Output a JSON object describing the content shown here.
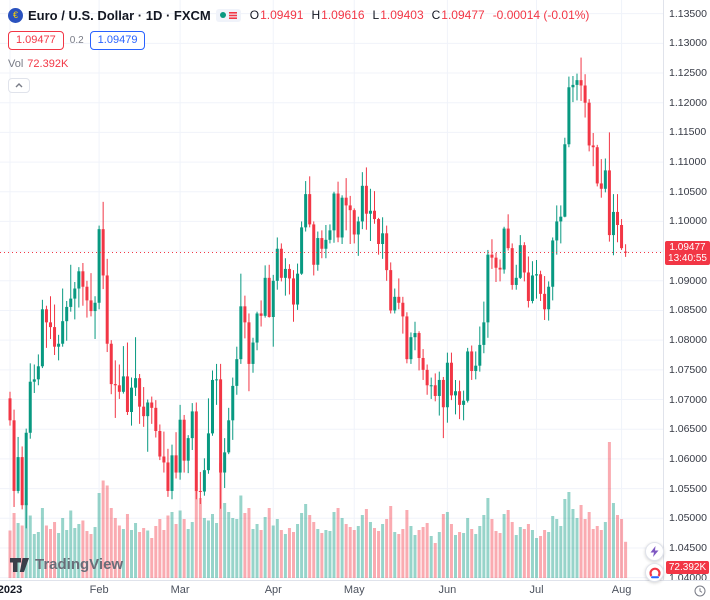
{
  "header": {
    "symbol_title": "Euro / U.S. Dollar · 1D · FXCM",
    "ohlc": {
      "o_label": "O",
      "o": "1.09491",
      "h_label": "H",
      "h": "1.09616",
      "l_label": "L",
      "l": "1.09403",
      "c_label": "C",
      "c": "1.09477",
      "change": "-0.00014 (-0.01%)"
    },
    "sell_price": "1.09477",
    "spread": "0.2",
    "buy_price": "1.09479",
    "vol_label": "Vol",
    "vol_value": "72.392K"
  },
  "price_axis": {
    "ticks": [
      1.135,
      1.13,
      1.125,
      1.12,
      1.115,
      1.11,
      1.105,
      1.1,
      1.095,
      1.09,
      1.085,
      1.08,
      1.075,
      1.07,
      1.065,
      1.06,
      1.055,
      1.05,
      1.045,
      1.04
    ],
    "last_price": "1.09477",
    "countdown": "13:40:55",
    "volume_badge": "72.392K"
  },
  "time_axis": {
    "ticks": [
      {
        "label": "2023",
        "index": 0,
        "major": true
      },
      {
        "label": "Feb",
        "index": 22
      },
      {
        "label": "Mar",
        "index": 42
      },
      {
        "label": "Apr",
        "index": 65
      },
      {
        "label": "May",
        "index": 85
      },
      {
        "label": "Jun",
        "index": 108
      },
      {
        "label": "Jul",
        "index": 130
      },
      {
        "label": "Aug",
        "index": 151
      }
    ]
  },
  "footer": {
    "logo_text": "TradingView"
  },
  "colors": {
    "up": "#089981",
    "down": "#f23645",
    "accent_blue": "#2962ff",
    "grid": "#f0f3fa",
    "axis_border": "#e0e3eb"
  },
  "chart_data": {
    "type": "candlestick",
    "title": "Euro / U.S. Dollar 1D FXCM",
    "symbol": "EUR/USD",
    "timeframe": "1D",
    "exchange": "FXCM",
    "legend_ohlc": {
      "open": 1.09491,
      "high": 1.09616,
      "low": 1.09403,
      "close": 1.09477,
      "change": -0.00014,
      "change_pct": -0.01
    },
    "last_price": 1.09477,
    "last_volume_k": 72.392,
    "y_axis": {
      "min": 1.0396,
      "max": 1.1373,
      "tick_step": 0.005,
      "grid": true,
      "position": "right"
    },
    "x_axis": {
      "start": "2023-01-02",
      "end": "2023-08-02",
      "unit": "trading-day"
    },
    "candles": [
      [
        1.0702,
        1.0713,
        1.0656,
        1.0665
      ],
      [
        1.0665,
        1.0683,
        1.0519,
        1.0546
      ],
      [
        1.0546,
        1.0637,
        1.0542,
        1.0603
      ],
      [
        1.0603,
        1.0621,
        1.0515,
        1.0522
      ],
      [
        1.0522,
        1.0651,
        1.0483,
        1.0644
      ],
      [
        1.0644,
        1.0761,
        1.0634,
        1.073
      ],
      [
        1.073,
        1.0759,
        1.0711,
        1.0734
      ],
      [
        1.0734,
        1.0776,
        1.0724,
        1.0756
      ],
      [
        1.0756,
        1.0868,
        1.0753,
        1.0852
      ],
      [
        1.0852,
        1.0858,
        1.0787,
        1.083
      ],
      [
        1.083,
        1.0874,
        1.0802,
        1.0822
      ],
      [
        1.0822,
        1.086,
        1.0775,
        1.0789
      ],
      [
        1.0789,
        1.0809,
        1.0766,
        1.0794
      ],
      [
        1.0794,
        1.0887,
        1.0789,
        1.0832
      ],
      [
        1.0832,
        1.0866,
        1.0799,
        1.0856
      ],
      [
        1.0856,
        1.0927,
        1.0848,
        1.087
      ],
      [
        1.087,
        1.0898,
        1.0835,
        1.0887
      ],
      [
        1.0887,
        1.0923,
        1.0855,
        1.0916
      ],
      [
        1.0916,
        1.093,
        1.0858,
        1.089
      ],
      [
        1.089,
        1.09,
        1.0838,
        1.0867
      ],
      [
        1.0867,
        1.0913,
        1.084,
        1.0849
      ],
      [
        1.0849,
        1.0874,
        1.0802,
        1.0863
      ],
      [
        1.0863,
        1.0993,
        1.0852,
        1.0987
      ],
      [
        1.0987,
        1.1033,
        1.0886,
        1.0909
      ],
      [
        1.0909,
        1.0937,
        1.078,
        1.0794
      ],
      [
        1.0794,
        1.08,
        1.0709,
        1.0726
      ],
      [
        1.0726,
        1.0766,
        1.0669,
        1.0724
      ],
      [
        1.0724,
        1.0759,
        1.0701,
        1.0713
      ],
      [
        1.0713,
        1.079,
        1.071,
        1.0739
      ],
      [
        1.0739,
        1.0796,
        1.0674,
        1.0679
      ],
      [
        1.0679,
        1.0737,
        1.0656,
        1.072
      ],
      [
        1.072,
        1.0805,
        1.0706,
        1.0736
      ],
      [
        1.0736,
        1.0743,
        1.0659,
        1.0688
      ],
      [
        1.0688,
        1.0721,
        1.0654,
        1.0672
      ],
      [
        1.0672,
        1.07,
        1.0612,
        1.0695
      ],
      [
        1.0695,
        1.0705,
        1.0659,
        1.0686
      ],
      [
        1.0686,
        1.0699,
        1.0636,
        1.0647
      ],
      [
        1.0647,
        1.0658,
        1.0598,
        1.0604
      ],
      [
        1.0604,
        1.0646,
        1.0577,
        1.0594
      ],
      [
        1.0594,
        1.0617,
        1.0536,
        1.0546
      ],
      [
        1.0546,
        1.0624,
        1.0532,
        1.0606
      ],
      [
        1.0606,
        1.0645,
        1.0567,
        1.0577
      ],
      [
        1.0577,
        1.0691,
        1.0565,
        1.0666
      ],
      [
        1.0666,
        1.0674,
        1.0577,
        1.0597
      ],
      [
        1.0597,
        1.064,
        1.0576,
        1.0635
      ],
      [
        1.0635,
        1.0694,
        1.0615,
        1.068
      ],
      [
        1.068,
        1.0695,
        1.0532,
        1.0546
      ],
      [
        1.0546,
        1.0578,
        1.0524,
        1.0545
      ],
      [
        1.0545,
        1.0601,
        1.0538,
        1.0581
      ],
      [
        1.0581,
        1.0702,
        1.0575,
        1.0643
      ],
      [
        1.0643,
        1.0749,
        1.0639,
        1.0733
      ],
      [
        1.0733,
        1.076,
        1.0691,
        1.0734
      ],
      [
        1.0734,
        1.076,
        1.0516,
        1.0577
      ],
      [
        1.0577,
        1.0635,
        1.0551,
        1.0611
      ],
      [
        1.0611,
        1.0686,
        1.0608,
        1.0665
      ],
      [
        1.0665,
        1.0737,
        1.0632,
        1.0723
      ],
      [
        1.0723,
        1.0789,
        1.0708,
        1.0768
      ],
      [
        1.0768,
        1.0912,
        1.076,
        1.0857
      ],
      [
        1.0857,
        1.0875,
        1.0803,
        1.083
      ],
      [
        1.083,
        1.0845,
        1.0714,
        1.076
      ],
      [
        1.076,
        1.0804,
        1.0745,
        1.0796
      ],
      [
        1.0796,
        1.0848,
        1.0783,
        1.0845
      ],
      [
        1.0845,
        1.0867,
        1.0823,
        1.0841
      ],
      [
        1.0841,
        1.0926,
        1.0838,
        1.0905
      ],
      [
        1.0905,
        1.0927,
        1.0838,
        1.0839
      ],
      [
        1.0839,
        1.091,
        1.0789,
        1.09
      ],
      [
        1.09,
        1.0973,
        1.0885,
        1.0954
      ],
      [
        1.0954,
        1.0963,
        1.0899,
        1.0905
      ],
      [
        1.0905,
        1.0938,
        1.0875,
        1.092
      ],
      [
        1.092,
        1.0928,
        1.0877,
        1.0904
      ],
      [
        1.0904,
        1.0918,
        1.0831,
        1.086
      ],
      [
        1.086,
        1.0929,
        1.0851,
        1.0912
      ],
      [
        1.0912,
        1.1,
        1.091,
        1.099
      ],
      [
        1.099,
        1.1068,
        1.0983,
        1.1046
      ],
      [
        1.1046,
        1.1076,
        1.099,
        1.0995
      ],
      [
        1.0995,
        1.1,
        1.0909,
        1.0927
      ],
      [
        1.0927,
        1.0983,
        1.0917,
        1.0972
      ],
      [
        1.0972,
        1.0985,
        1.0938,
        1.0954
      ],
      [
        1.0954,
        1.0994,
        1.0938,
        1.0969
      ],
      [
        1.0969,
        1.0995,
        1.0963,
        1.0985
      ],
      [
        1.0985,
        1.105,
        1.0964,
        1.1047
      ],
      [
        1.1047,
        1.1067,
        1.0965,
        1.0973
      ],
      [
        1.0973,
        1.1044,
        1.0962,
        1.104
      ],
      [
        1.104,
        1.1073,
        1.0985,
        1.1027
      ],
      [
        1.1027,
        1.1043,
        1.0962,
        1.1019
      ],
      [
        1.1019,
        1.1022,
        1.0963,
        1.0978
      ],
      [
        1.0978,
        1.1008,
        1.0942,
        1.1
      ],
      [
        1.1,
        1.1083,
        1.0987,
        1.106
      ],
      [
        1.106,
        1.1091,
        1.0986,
        1.1013
      ],
      [
        1.1013,
        1.1055,
        1.0967,
        1.1018
      ],
      [
        1.1018,
        1.1051,
        1.0996,
        1.1004
      ],
      [
        1.1004,
        1.1006,
        1.0944,
        1.0962
      ],
      [
        1.0962,
        1.1007,
        1.0937,
        1.098
      ],
      [
        1.098,
        1.0993,
        1.09,
        1.0918
      ],
      [
        1.0918,
        1.0931,
        1.0845,
        1.085
      ],
      [
        1.085,
        1.0887,
        1.0845,
        1.0873
      ],
      [
        1.0873,
        1.0904,
        1.0852,
        1.0863
      ],
      [
        1.0863,
        1.0873,
        1.0811,
        1.084
      ],
      [
        1.084,
        1.0847,
        1.0761,
        1.0768
      ],
      [
        1.0768,
        1.0813,
        1.076,
        1.0805
      ],
      [
        1.0805,
        1.0831,
        1.0783,
        1.0812
      ],
      [
        1.0812,
        1.0815,
        1.0749,
        1.077
      ],
      [
        1.077,
        1.0785,
        1.0733,
        1.075
      ],
      [
        1.075,
        1.0759,
        1.0708,
        1.0724
      ],
      [
        1.0724,
        1.0737,
        1.0701,
        1.0724
      ],
      [
        1.0724,
        1.0744,
        1.0697,
        1.0706
      ],
      [
        1.0706,
        1.0747,
        1.0673,
        1.0733
      ],
      [
        1.0733,
        1.0738,
        1.0635,
        1.0687
      ],
      [
        1.0687,
        1.0779,
        1.0661,
        1.0762
      ],
      [
        1.0762,
        1.0779,
        1.0699,
        1.0707
      ],
      [
        1.0707,
        1.0733,
        1.0675,
        1.0714
      ],
      [
        1.0714,
        1.0732,
        1.0667,
        1.0691
      ],
      [
        1.0691,
        1.0715,
        1.0665,
        1.0698
      ],
      [
        1.0698,
        1.0787,
        1.0695,
        1.0781
      ],
      [
        1.0781,
        1.0791,
        1.0733,
        1.0748
      ],
      [
        1.0748,
        1.0781,
        1.0734,
        1.0757
      ],
      [
        1.0757,
        1.0823,
        1.0747,
        1.0792
      ],
      [
        1.0792,
        1.0865,
        1.0778,
        1.083
      ],
      [
        1.083,
        1.0952,
        1.0804,
        1.0944
      ],
      [
        1.0944,
        1.097,
        1.092,
        1.0939
      ],
      [
        1.0939,
        1.0947,
        1.0898,
        1.0922
      ],
      [
        1.0922,
        1.0936,
        1.0899,
        1.0919
      ],
      [
        1.0919,
        1.0991,
        1.0912,
        1.0988
      ],
      [
        1.0988,
        1.1012,
        1.0951,
        1.0955
      ],
      [
        1.0955,
        1.0963,
        1.0885,
        1.0893
      ],
      [
        1.0893,
        1.0927,
        1.0885,
        1.0905
      ],
      [
        1.0905,
        1.0977,
        1.0903,
        1.096
      ],
      [
        1.096,
        1.0965,
        1.0899,
        1.0914
      ],
      [
        1.0914,
        1.0941,
        1.0855,
        1.0866
      ],
      [
        1.0866,
        1.0933,
        1.0862,
        1.0909
      ],
      [
        1.0909,
        1.0935,
        1.087,
        1.0911
      ],
      [
        1.0911,
        1.0917,
        1.0866,
        1.0878
      ],
      [
        1.0878,
        1.0908,
        1.0834,
        1.0852
      ],
      [
        1.0852,
        1.0899,
        1.0833,
        1.089
      ],
      [
        1.089,
        1.0973,
        1.0867,
        1.0968
      ],
      [
        1.0968,
        1.1027,
        1.0944,
        1.1
      ],
      [
        1.1,
        1.1027,
        1.0963,
        1.1008
      ],
      [
        1.1008,
        1.1141,
        1.1007,
        1.113
      ],
      [
        1.113,
        1.1244,
        1.1125,
        1.1226
      ],
      [
        1.1226,
        1.1245,
        1.1201,
        1.123
      ],
      [
        1.123,
        1.1249,
        1.1204,
        1.1238
      ],
      [
        1.1238,
        1.1276,
        1.1203,
        1.1229
      ],
      [
        1.1229,
        1.1248,
        1.1175,
        1.12
      ],
      [
        1.12,
        1.1206,
        1.1118,
        1.1128
      ],
      [
        1.1128,
        1.1149,
        1.1093,
        1.1125
      ],
      [
        1.1125,
        1.1129,
        1.1059,
        1.1064
      ],
      [
        1.1064,
        1.1105,
        1.104,
        1.1055
      ],
      [
        1.1055,
        1.1106,
        1.1049,
        1.1086
      ],
      [
        1.1086,
        1.115,
        1.0966,
        1.0977
      ],
      [
        1.0977,
        1.1046,
        1.0943,
        1.1016
      ],
      [
        1.1016,
        1.1046,
        1.0965,
        1.0994
      ],
      [
        1.0994,
        1.1004,
        1.0952,
        1.0955
      ],
      [
        1.09491,
        1.09616,
        1.09403,
        1.09477
      ]
    ],
    "volumes_k": [
      95,
      130,
      110,
      105,
      150,
      125,
      88,
      92,
      140,
      105,
      98,
      112,
      90,
      120,
      96,
      135,
      100,
      108,
      115,
      94,
      88,
      102,
      170,
      195,
      185,
      140,
      120,
      105,
      98,
      128,
      96,
      110,
      92,
      100,
      95,
      80,
      104,
      118,
      96,
      125,
      132,
      108,
      135,
      118,
      98,
      112,
      175,
      160,
      120,
      115,
      128,
      110,
      230,
      150,
      132,
      120,
      118,
      165,
      130,
      140,
      98,
      108,
      96,
      122,
      140,
      105,
      118,
      96,
      88,
      100,
      92,
      108,
      130,
      148,
      126,
      112,
      98,
      90,
      96,
      94,
      132,
      140,
      120,
      108,
      102,
      96,
      104,
      126,
      138,
      112,
      100,
      94,
      108,
      118,
      144,
      92,
      88,
      98,
      136,
      104,
      86,
      96,
      102,
      110,
      84,
      70,
      92,
      128,
      132,
      108,
      86,
      92,
      90,
      120,
      98,
      88,
      104,
      126,
      160,
      118,
      94,
      90,
      128,
      136,
      112,
      86,
      102,
      98,
      108,
      96,
      80,
      84,
      96,
      92,
      124,
      118,
      104,
      158,
      172,
      138,
      120,
      146,
      118,
      132,
      98,
      104,
      96,
      112,
      272,
      150,
      126,
      118,
      72.392
    ]
  }
}
